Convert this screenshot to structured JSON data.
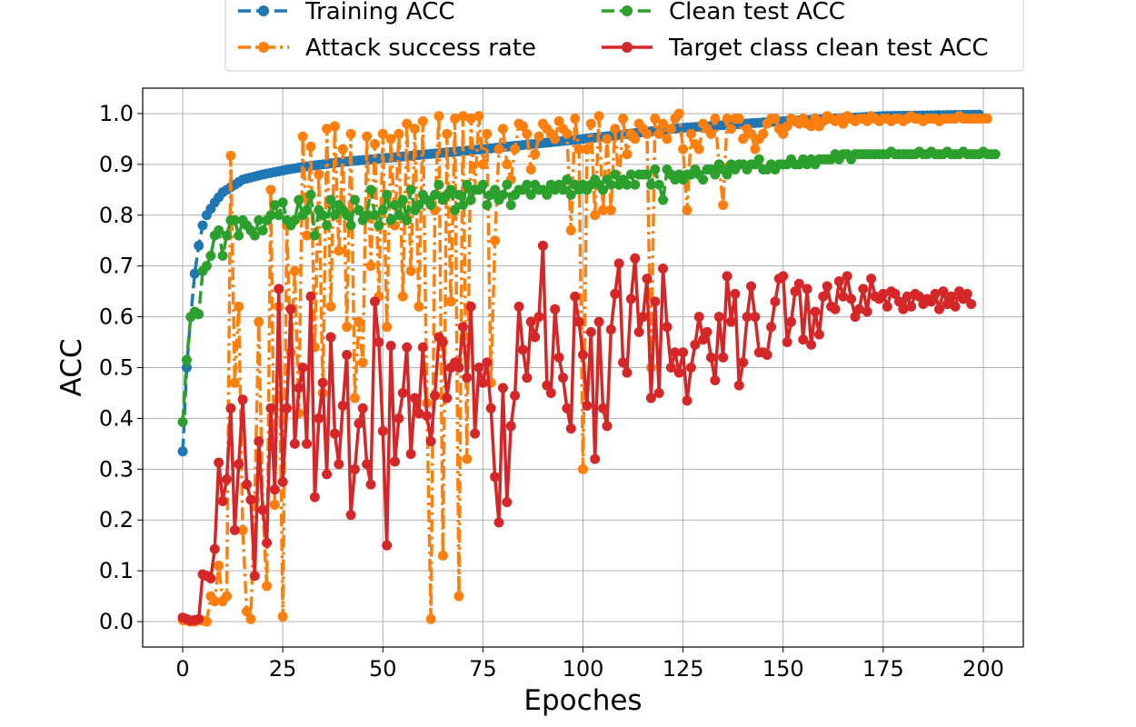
{
  "chart_data": {
    "type": "line",
    "xlabel": "Epoches",
    "ylabel": "ACC",
    "xlim": [
      -10,
      210
    ],
    "ylim": [
      -0.05,
      1.05
    ],
    "x_ticks": [
      0,
      25,
      50,
      75,
      100,
      125,
      150,
      175,
      200
    ],
    "y_ticks": [
      0.0,
      0.1,
      0.2,
      0.3,
      0.4,
      0.5,
      0.6,
      0.7,
      0.8,
      0.9,
      1.0
    ],
    "grid": true,
    "legend_position": "top-center",
    "legend": [
      "Training ACC",
      "Attack success rate",
      "Clean test ACC",
      "Target class clean test ACC"
    ],
    "colors": {
      "training": "#1f77b4",
      "attack": "#ff7f0e",
      "clean": "#2ca02c",
      "target": "#d62728",
      "grid": "#b0b0b0"
    },
    "series": [
      {
        "name": "Training ACC",
        "style": "dashed",
        "knots": [
          [
            0,
            0.335
          ],
          [
            1,
            0.5
          ],
          [
            2,
            0.6
          ],
          [
            3,
            0.685
          ],
          [
            4,
            0.74
          ],
          [
            5,
            0.78
          ],
          [
            6,
            0.8
          ],
          [
            8,
            0.825
          ],
          [
            10,
            0.845
          ],
          [
            15,
            0.87
          ],
          [
            20,
            0.88
          ],
          [
            25,
            0.888
          ],
          [
            30,
            0.895
          ],
          [
            40,
            0.905
          ],
          [
            50,
            0.912
          ],
          [
            75,
            0.93
          ],
          [
            100,
            0.95
          ],
          [
            125,
            0.972
          ],
          [
            150,
            0.985
          ],
          [
            175,
            0.995
          ],
          [
            200,
            0.998
          ]
        ]
      },
      {
        "name": "Attack success rate",
        "style": "dashdot",
        "values": [
          0.003,
          0.002,
          0.0,
          0.0,
          0.003,
          0.002,
          0.0,
          0.05,
          0.04,
          0.11,
          0.04,
          0.05,
          0.917,
          0.47,
          0.62,
          0.18,
          0.02,
          0.005,
          0.24,
          0.59,
          0.22,
          0.07,
          0.85,
          0.23,
          0.62,
          0.01,
          0.78,
          0.53,
          0.69,
          0.41,
          0.955,
          0.76,
          0.935,
          0.54,
          0.88,
          0.45,
          0.97,
          0.62,
          0.975,
          0.73,
          0.93,
          0.58,
          0.96,
          0.44,
          0.59,
          0.51,
          0.955,
          0.7,
          0.94,
          0.64,
          0.96,
          0.58,
          0.95,
          0.78,
          0.96,
          0.64,
          0.98,
          0.69,
          0.97,
          0.62,
          0.985,
          0.43,
          0.005,
          0.81,
          0.995,
          0.13,
          0.96,
          0.63,
          0.99,
          0.05,
          0.995,
          0.32,
          0.99,
          0.85,
          0.995,
          0.9,
          0.96,
          0.47,
          0.75,
          0.93,
          0.97,
          0.9,
          0.87,
          0.93,
          0.98,
          0.975,
          0.96,
          0.89,
          0.92,
          0.955,
          0.98,
          0.97,
          0.96,
          0.95,
          0.985,
          0.97,
          0.96,
          0.77,
          0.99,
          0.93,
          0.3,
          0.93,
          0.98,
          0.8,
          0.995,
          0.81,
          0.95,
          0.81,
          0.97,
          0.86,
          0.99,
          0.92,
          0.96,
          0.95,
          0.98,
          0.97,
          0.96,
          0.5,
          0.99,
          0.96,
          0.98,
          0.95,
          0.97,
          0.99,
          1.0,
          0.93,
          0.81,
          0.96,
          0.94,
          0.93,
          0.98,
          0.97,
          0.96,
          0.99,
          0.9,
          0.82,
          0.99,
          0.97,
          0.99,
          0.99,
          0.95,
          0.97,
          0.96,
          0.93,
          0.95,
          0.96,
          0.98,
          0.99,
          0.99,
          0.97,
          0.96,
          0.975,
          0.99,
          0.985,
          0.98,
          0.99,
          0.98,
          0.975,
          0.99,
          0.975,
          0.985,
          0.995,
          0.99,
          0.985,
          0.99,
          0.98,
          0.995,
          0.99,
          0.985,
          0.99,
          0.99,
          0.985,
          0.995,
          0.99,
          0.985,
          0.99,
          0.99,
          0.985,
          0.99,
          0.99,
          0.985,
          0.99,
          0.995,
          0.99,
          0.99,
          0.985,
          0.99,
          0.99,
          0.99,
          0.985,
          0.99,
          0.99,
          0.99,
          0.99,
          0.995,
          0.99,
          0.99,
          0.99,
          0.99,
          0.99,
          0.99,
          0.99
        ]
      },
      {
        "name": "Clean test ACC",
        "style": "dashed",
        "values": [
          0.393,
          0.515,
          0.6,
          0.61,
          0.605,
          0.69,
          0.7,
          0.72,
          0.76,
          0.77,
          0.72,
          0.76,
          0.79,
          0.79,
          0.76,
          0.79,
          0.78,
          0.77,
          0.76,
          0.79,
          0.77,
          0.79,
          0.8,
          0.82,
          0.8,
          0.825,
          0.79,
          0.78,
          0.79,
          0.83,
          0.8,
          0.81,
          0.84,
          0.76,
          0.81,
          0.8,
          0.78,
          0.83,
          0.8,
          0.82,
          0.81,
          0.8,
          0.78,
          0.83,
          0.81,
          0.79,
          0.8,
          0.85,
          0.8,
          0.78,
          0.81,
          0.84,
          0.79,
          0.82,
          0.8,
          0.83,
          0.79,
          0.85,
          0.81,
          0.82,
          0.84,
          0.83,
          0.82,
          0.84,
          0.86,
          0.83,
          0.84,
          0.85,
          0.81,
          0.84,
          0.82,
          0.86,
          0.83,
          0.85,
          0.85,
          0.86,
          0.82,
          0.84,
          0.85,
          0.83,
          0.84,
          0.86,
          0.82,
          0.84,
          0.85,
          0.85,
          0.86,
          0.84,
          0.86,
          0.85,
          0.85,
          0.84,
          0.86,
          0.85,
          0.86,
          0.85,
          0.87,
          0.84,
          0.86,
          0.85,
          0.86,
          0.85,
          0.86,
          0.87,
          0.86,
          0.85,
          0.87,
          0.86,
          0.88,
          0.86,
          0.87,
          0.86,
          0.88,
          0.86,
          0.88,
          0.88,
          0.88,
          0.86,
          0.89,
          0.86,
          0.83,
          0.89,
          0.88,
          0.87,
          0.88,
          0.87,
          0.88,
          0.88,
          0.89,
          0.88,
          0.87,
          0.89,
          0.89,
          0.88,
          0.9,
          0.89,
          0.88,
          0.9,
          0.89,
          0.9,
          0.9,
          0.89,
          0.9,
          0.9,
          0.91,
          0.89,
          0.89,
          0.9,
          0.89,
          0.9,
          0.9,
          0.9,
          0.91,
          0.9,
          0.9,
          0.91,
          0.9,
          0.91,
          0.9,
          0.91,
          0.91,
          0.91,
          0.91,
          0.92,
          0.91,
          0.92,
          0.92,
          0.91,
          0.92,
          0.92,
          0.92,
          0.92,
          0.92,
          0.92,
          0.92,
          0.92,
          0.92,
          0.925,
          0.92,
          0.92,
          0.92,
          0.92,
          0.92,
          0.92,
          0.925,
          0.92,
          0.92,
          0.925,
          0.92,
          0.92,
          0.92,
          0.925,
          0.92,
          0.92,
          0.92,
          0.925,
          0.92,
          0.92,
          0.92,
          0.92,
          0.925,
          0.92,
          0.92,
          0.92
        ]
      },
      {
        "name": "Target class clean test ACC",
        "style": "solid",
        "values": [
          0.008,
          0.005,
          0.002,
          0.003,
          0.005,
          0.093,
          0.09,
          0.085,
          0.143,
          0.313,
          0.237,
          0.28,
          0.42,
          0.18,
          0.31,
          0.437,
          0.27,
          0.24,
          0.09,
          0.355,
          0.22,
          0.155,
          0.42,
          0.26,
          0.655,
          0.275,
          0.42,
          0.615,
          0.35,
          0.46,
          0.5,
          0.35,
          0.64,
          0.245,
          0.4,
          0.47,
          0.29,
          0.56,
          0.37,
          0.31,
          0.425,
          0.525,
          0.21,
          0.3,
          0.39,
          0.42,
          0.31,
          0.27,
          0.63,
          0.55,
          0.375,
          0.15,
          0.543,
          0.315,
          0.4,
          0.45,
          0.54,
          0.33,
          0.44,
          0.41,
          0.54,
          0.405,
          0.355,
          0.445,
          0.56,
          0.55,
          0.44,
          0.5,
          0.51,
          0.5,
          0.58,
          0.48,
          0.62,
          0.37,
          0.5,
          0.47,
          0.51,
          0.42,
          0.285,
          0.195,
          0.46,
          0.235,
          0.385,
          0.445,
          0.62,
          0.535,
          0.48,
          0.59,
          0.56,
          0.6,
          0.74,
          0.465,
          0.45,
          0.615,
          0.52,
          0.48,
          0.42,
          0.38,
          0.64,
          0.59,
          0.525,
          0.425,
          0.57,
          0.32,
          0.59,
          0.42,
          0.385,
          0.575,
          0.645,
          0.705,
          0.51,
          0.49,
          0.635,
          0.715,
          0.57,
          0.6,
          0.675,
          0.44,
          0.63,
          0.45,
          0.695,
          0.58,
          0.5,
          0.53,
          0.49,
          0.53,
          0.435,
          0.5,
          0.545,
          0.6,
          0.555,
          0.57,
          0.52,
          0.475,
          0.6,
          0.52,
          0.68,
          0.59,
          0.645,
          0.465,
          0.51,
          0.6,
          0.66,
          0.6,
          0.53,
          0.53,
          0.525,
          0.58,
          0.63,
          0.675,
          0.68,
          0.55,
          0.59,
          0.65,
          0.665,
          0.555,
          0.655,
          0.545,
          0.61,
          0.565,
          0.64,
          0.66,
          0.62,
          0.615,
          0.67,
          0.64,
          0.68,
          0.635,
          0.6,
          0.615,
          0.655,
          0.61,
          0.675,
          0.64,
          0.635,
          0.645,
          0.62,
          0.65,
          0.645,
          0.63,
          0.615,
          0.64,
          0.62,
          0.645,
          0.64,
          0.625,
          0.635,
          0.63,
          0.645,
          0.615,
          0.65,
          0.625,
          0.64,
          0.62,
          0.65,
          0.635,
          0.645,
          0.625
        ]
      }
    ]
  }
}
